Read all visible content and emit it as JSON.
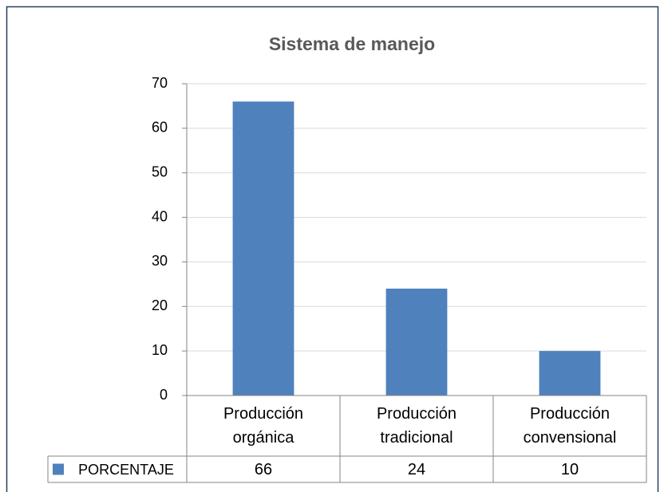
{
  "chart_data": {
    "type": "bar",
    "title": "Sistema de manejo",
    "categories": [
      "Producción orgánica",
      "Producción tradicional",
      "Producción convensional"
    ],
    "series": [
      {
        "name": "PORCENTAJE",
        "color": "#4f81bd",
        "values": [
          66,
          24,
          10
        ]
      }
    ],
    "ylim": [
      0,
      70
    ],
    "yticks": [
      0,
      10,
      20,
      30,
      40,
      50,
      60,
      70
    ],
    "grid": true
  }
}
